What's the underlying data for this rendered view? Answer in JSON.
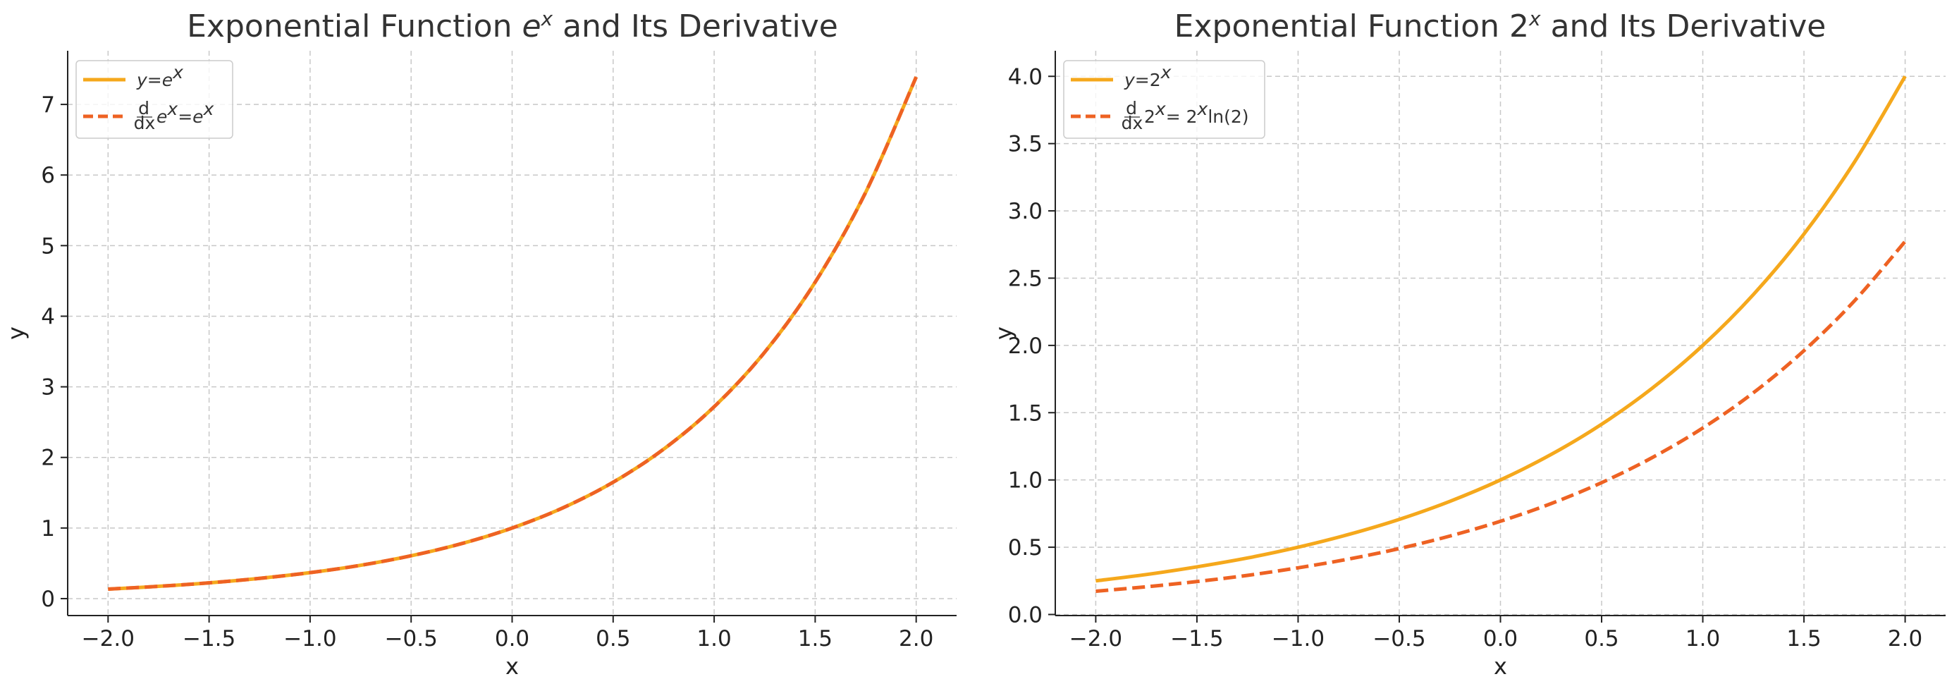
{
  "colors": {
    "function": "#F5A81C",
    "derivative": "#EE6223",
    "grid": "#c8c8c8",
    "text": "#333333"
  },
  "chart_data": [
    {
      "type": "line",
      "title": {
        "prefix": "Exponential Function ",
        "base": "e",
        "sup": "x",
        "suffix": " and Its Derivative"
      },
      "xlabel": "x",
      "ylabel": "y",
      "xlim": [
        -2.2,
        2.2
      ],
      "ylim": [
        -0.24,
        7.76
      ],
      "xticks": [
        "-2.0",
        "-1.5",
        "-1.0",
        "-0.5",
        "0.0",
        "0.5",
        "1.0",
        "1.5",
        "2.0"
      ],
      "yticks": [
        "0",
        "1",
        "2",
        "3",
        "4",
        "5",
        "6",
        "7"
      ],
      "grid": true,
      "legend_position": "top-left",
      "legend": [
        {
          "parts": [
            {
              "t": "y",
              "it": true
            },
            {
              "t": " = "
            },
            {
              "t": "e",
              "it": true
            },
            {
              "t": "x",
              "it": true,
              "sup": true
            }
          ],
          "style": "solid",
          "color_key": "function"
        },
        {
          "parts": [
            {
              "t": "d",
              "frac": true,
              "over": "dx"
            },
            {
              "t": "e",
              "it": true
            },
            {
              "t": "x",
              "it": true,
              "sup": true
            },
            {
              "t": " = "
            },
            {
              "t": "e",
              "it": true
            },
            {
              "t": "x",
              "it": true,
              "sup": true
            }
          ],
          "style": "dashed",
          "color_key": "derivative"
        }
      ],
      "x": [
        -2.0,
        -1.75,
        -1.5,
        -1.25,
        -1.0,
        -0.75,
        -0.5,
        -0.25,
        0.0,
        0.25,
        0.5,
        0.75,
        1.0,
        1.25,
        1.5,
        1.75,
        2.0
      ],
      "series": [
        {
          "values": [
            0.135,
            0.174,
            0.223,
            0.287,
            0.368,
            0.472,
            0.607,
            0.779,
            1.0,
            1.284,
            1.649,
            2.117,
            2.718,
            3.49,
            4.482,
            5.755,
            7.389
          ],
          "style": "solid",
          "color_key": "function"
        },
        {
          "values": [
            0.135,
            0.174,
            0.223,
            0.287,
            0.368,
            0.472,
            0.607,
            0.779,
            1.0,
            1.284,
            1.649,
            2.117,
            2.718,
            3.49,
            4.482,
            5.755,
            7.389
          ],
          "style": "dashed",
          "color_key": "derivative"
        }
      ]
    },
    {
      "type": "line",
      "title": {
        "prefix": "Exponential Function ",
        "base": "2",
        "sup": "x",
        "suffix": " and Its Derivative"
      },
      "xlabel": "x",
      "ylabel": "y",
      "xlim": [
        -2.2,
        2.2
      ],
      "ylim": [
        -0.0079,
        4.19
      ],
      "xticks": [
        "-2.0",
        "-1.5",
        "-1.0",
        "-0.5",
        "0.0",
        "0.5",
        "1.0",
        "1.5",
        "2.0"
      ],
      "yticks": [
        "0.0",
        "0.5",
        "1.0",
        "1.5",
        "2.0",
        "2.5",
        "3.0",
        "3.5",
        "4.0"
      ],
      "grid": true,
      "legend_position": "top-left",
      "legend": [
        {
          "parts": [
            {
              "t": "y",
              "it": true
            },
            {
              "t": " = "
            },
            {
              "t": "2"
            },
            {
              "t": "x",
              "it": true,
              "sup": true
            }
          ],
          "style": "solid",
          "color_key": "function"
        },
        {
          "parts": [
            {
              "t": "d",
              "frac": true,
              "over": "dx"
            },
            {
              "t": "2"
            },
            {
              "t": "x",
              "it": true,
              "sup": true
            },
            {
              "t": " = 2"
            },
            {
              "t": "x",
              "it": true,
              "sup": true
            },
            {
              "t": "ln(2)"
            }
          ],
          "style": "dashed",
          "color_key": "derivative"
        }
      ],
      "x": [
        -2.0,
        -1.75,
        -1.5,
        -1.25,
        -1.0,
        -0.75,
        -0.5,
        -0.25,
        0.0,
        0.25,
        0.5,
        0.75,
        1.0,
        1.25,
        1.5,
        1.75,
        2.0
      ],
      "series": [
        {
          "values": [
            0.25,
            0.297,
            0.354,
            0.42,
            0.5,
            0.595,
            0.707,
            0.841,
            1.0,
            1.189,
            1.414,
            1.682,
            2.0,
            2.378,
            2.828,
            3.364,
            4.0
          ],
          "style": "solid",
          "color_key": "function"
        },
        {
          "values": [
            0.173,
            0.206,
            0.245,
            0.291,
            0.347,
            0.412,
            0.49,
            0.583,
            0.693,
            0.824,
            0.98,
            1.166,
            1.386,
            1.648,
            1.961,
            2.332,
            2.773
          ],
          "style": "dashed",
          "color_key": "derivative"
        }
      ]
    }
  ]
}
